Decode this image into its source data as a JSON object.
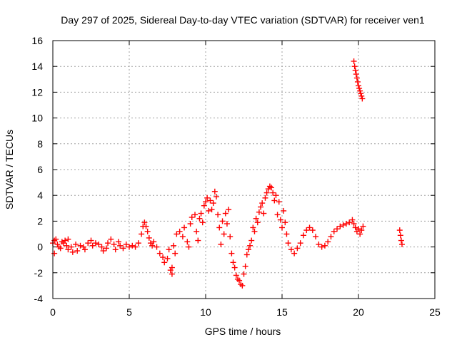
{
  "chart_data": {
    "type": "scatter",
    "title": "Day 297 of 2025, Sidereal Day-to-day VTEC variation (SDTVAR) for receiver ven1",
    "xlabel": "GPS time / hours",
    "ylabel": "SDTVAR / TECUs",
    "xlim": [
      0,
      25
    ],
    "ylim": [
      -4,
      16
    ],
    "xticks": [
      "0",
      "5",
      "10",
      "15",
      "20",
      "25"
    ],
    "yticks": [
      "-4",
      "-2",
      "0",
      "2",
      "4",
      "6",
      "8",
      "10",
      "12",
      "14",
      "16"
    ],
    "grid": true,
    "marker": "+",
    "color": "#ff0000",
    "series": [
      {
        "name": "SDTVAR",
        "points": [
          [
            0.0,
            0.3
          ],
          [
            0.1,
            -0.5
          ],
          [
            0.1,
            0.5
          ],
          [
            0.2,
            0.6
          ],
          [
            0.3,
            0.2
          ],
          [
            0.4,
            0.0
          ],
          [
            0.5,
            -0.1
          ],
          [
            0.6,
            0.4
          ],
          [
            0.7,
            0.3
          ],
          [
            0.8,
            0.5
          ],
          [
            0.9,
            0.1
          ],
          [
            1.0,
            0.6
          ],
          [
            1.0,
            -0.2
          ],
          [
            1.2,
            0.0
          ],
          [
            1.3,
            -0.4
          ],
          [
            1.5,
            0.2
          ],
          [
            1.6,
            -0.3
          ],
          [
            1.8,
            0.1
          ],
          [
            2.0,
            0.0
          ],
          [
            2.1,
            -0.2
          ],
          [
            2.3,
            0.3
          ],
          [
            2.5,
            0.5
          ],
          [
            2.6,
            0.1
          ],
          [
            2.8,
            0.3
          ],
          [
            3.0,
            0.2
          ],
          [
            3.2,
            0.0
          ],
          [
            3.3,
            -0.3
          ],
          [
            3.5,
            -0.1
          ],
          [
            3.6,
            0.3
          ],
          [
            3.8,
            0.6
          ],
          [
            4.0,
            0.2
          ],
          [
            4.1,
            -0.2
          ],
          [
            4.3,
            0.4
          ],
          [
            4.4,
            0.1
          ],
          [
            4.6,
            -0.1
          ],
          [
            4.8,
            0.2
          ],
          [
            5.0,
            0.0
          ],
          [
            5.2,
            0.1
          ],
          [
            5.4,
            0.0
          ],
          [
            5.6,
            0.3
          ],
          [
            5.8,
            1.0
          ],
          [
            5.9,
            1.6
          ],
          [
            6.0,
            1.9
          ],
          [
            6.1,
            1.6
          ],
          [
            6.2,
            1.2
          ],
          [
            6.3,
            0.7
          ],
          [
            6.4,
            0.3
          ],
          [
            6.5,
            0.1
          ],
          [
            6.6,
            0.4
          ],
          [
            6.8,
            0.0
          ],
          [
            7.0,
            -0.5
          ],
          [
            7.2,
            -0.8
          ],
          [
            7.3,
            -1.2
          ],
          [
            7.5,
            -0.9
          ],
          [
            7.6,
            -0.2
          ],
          [
            7.7,
            -1.8
          ],
          [
            7.8,
            -2.1
          ],
          [
            7.8,
            -1.6
          ],
          [
            7.9,
            0.1
          ],
          [
            8.0,
            -0.5
          ],
          [
            8.1,
            1.0
          ],
          [
            8.3,
            1.2
          ],
          [
            8.5,
            0.8
          ],
          [
            8.6,
            1.5
          ],
          [
            8.8,
            0.4
          ],
          [
            8.9,
            0.0
          ],
          [
            9.0,
            1.8
          ],
          [
            9.1,
            2.3
          ],
          [
            9.3,
            2.5
          ],
          [
            9.4,
            1.2
          ],
          [
            9.5,
            0.5
          ],
          [
            9.6,
            2.2
          ],
          [
            9.7,
            2.6
          ],
          [
            9.8,
            1.9
          ],
          [
            9.9,
            3.2
          ],
          [
            10.0,
            3.5
          ],
          [
            10.1,
            3.8
          ],
          [
            10.2,
            2.8
          ],
          [
            10.3,
            3.6
          ],
          [
            10.4,
            2.9
          ],
          [
            10.5,
            3.4
          ],
          [
            10.6,
            4.3
          ],
          [
            10.7,
            3.9
          ],
          [
            10.8,
            2.5
          ],
          [
            10.9,
            1.5
          ],
          [
            11.0,
            0.2
          ],
          [
            11.1,
            2.0
          ],
          [
            11.2,
            1.0
          ],
          [
            11.3,
            2.6
          ],
          [
            11.4,
            1.8
          ],
          [
            11.5,
            2.9
          ],
          [
            11.6,
            0.8
          ],
          [
            11.7,
            -0.5
          ],
          [
            11.8,
            -1.2
          ],
          [
            11.9,
            -1.6
          ],
          [
            12.0,
            -2.2
          ],
          [
            12.1,
            -2.5
          ],
          [
            12.2,
            -2.6
          ],
          [
            12.3,
            -2.9
          ],
          [
            12.4,
            -3.0
          ],
          [
            12.5,
            -2.1
          ],
          [
            12.6,
            -1.5
          ],
          [
            12.7,
            -0.6
          ],
          [
            12.8,
            -0.2
          ],
          [
            12.9,
            0.1
          ],
          [
            13.0,
            0.5
          ],
          [
            13.1,
            1.5
          ],
          [
            13.2,
            1.2
          ],
          [
            13.3,
            2.2
          ],
          [
            13.4,
            1.9
          ],
          [
            13.5,
            2.7
          ],
          [
            13.6,
            3.1
          ],
          [
            13.7,
            3.4
          ],
          [
            13.8,
            2.6
          ],
          [
            13.9,
            3.8
          ],
          [
            14.0,
            4.2
          ],
          [
            14.1,
            4.5
          ],
          [
            14.2,
            4.7
          ],
          [
            14.3,
            4.6
          ],
          [
            14.4,
            4.2
          ],
          [
            14.5,
            3.6
          ],
          [
            14.6,
            4.0
          ],
          [
            14.7,
            2.5
          ],
          [
            14.8,
            3.5
          ],
          [
            14.9,
            2.1
          ],
          [
            15.0,
            1.5
          ],
          [
            15.1,
            2.8
          ],
          [
            15.2,
            1.9
          ],
          [
            15.3,
            1.0
          ],
          [
            15.4,
            0.3
          ],
          [
            15.6,
            -0.2
          ],
          [
            15.8,
            -0.5
          ],
          [
            16.0,
            -0.1
          ],
          [
            16.2,
            0.3
          ],
          [
            16.4,
            0.9
          ],
          [
            16.6,
            1.3
          ],
          [
            16.8,
            1.5
          ],
          [
            17.0,
            1.3
          ],
          [
            17.2,
            0.8
          ],
          [
            17.4,
            0.2
          ],
          [
            17.6,
            0.0
          ],
          [
            17.8,
            0.1
          ],
          [
            18.0,
            0.4
          ],
          [
            18.2,
            0.8
          ],
          [
            18.4,
            1.2
          ],
          [
            18.6,
            1.4
          ],
          [
            18.8,
            1.6
          ],
          [
            19.0,
            1.7
          ],
          [
            19.2,
            1.8
          ],
          [
            19.4,
            1.9
          ],
          [
            19.6,
            2.1
          ],
          [
            19.7,
            1.8
          ],
          [
            19.8,
            1.5
          ],
          [
            19.9,
            1.2
          ],
          [
            20.0,
            1.4
          ],
          [
            20.1,
            1.0
          ],
          [
            20.2,
            1.3
          ],
          [
            20.3,
            1.6
          ],
          [
            19.7,
            14.4
          ],
          [
            19.75,
            14.0
          ],
          [
            19.8,
            13.7
          ],
          [
            19.85,
            13.4
          ],
          [
            19.9,
            13.1
          ],
          [
            19.95,
            12.8
          ],
          [
            20.0,
            12.5
          ],
          [
            20.05,
            12.3
          ],
          [
            20.1,
            12.1
          ],
          [
            20.15,
            11.9
          ],
          [
            20.2,
            11.7
          ],
          [
            20.25,
            11.5
          ],
          [
            22.7,
            1.3
          ],
          [
            22.75,
            0.9
          ],
          [
            22.8,
            0.5
          ],
          [
            22.85,
            0.2
          ]
        ]
      }
    ]
  }
}
